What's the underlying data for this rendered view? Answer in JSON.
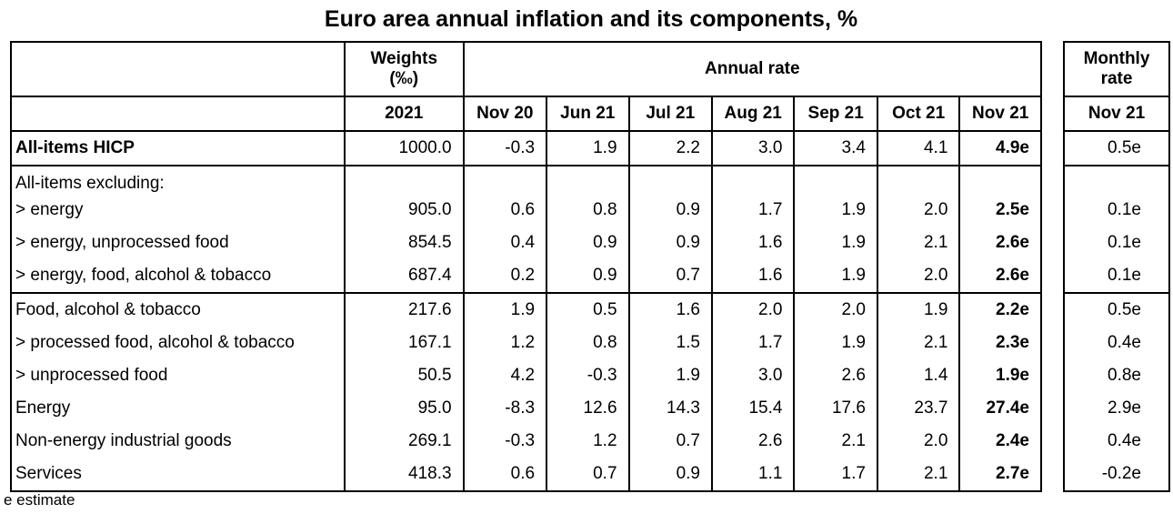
{
  "title": "Euro area annual inflation and its components, %",
  "headers": {
    "weights": "Weights\n(‰)",
    "weights_line1": "Weights",
    "weights_line2": "(‰)",
    "weights_year": "2021",
    "annual_rate": "Annual rate",
    "monthly_line1": "Monthly",
    "monthly_line2": "rate",
    "months": [
      "Nov 20",
      "Jun 21",
      "Jul 21",
      "Aug 21",
      "Sep 21",
      "Oct 21",
      "Nov 21"
    ],
    "monthly_month": "Nov 21"
  },
  "rows": [
    {
      "label": "All-items HICP",
      "weight": "1000.0",
      "values": [
        "-0.3",
        "1.9",
        "2.2",
        "3.0",
        "3.4",
        "4.1",
        "4.9e"
      ],
      "monthly": "0.5e"
    },
    {
      "label": "> energy",
      "weight": "905.0",
      "values": [
        "0.6",
        "0.8",
        "0.9",
        "1.7",
        "1.9",
        "2.0",
        "2.5e"
      ],
      "monthly": "0.1e"
    },
    {
      "label": "> energy, unprocessed food",
      "weight": "854.5",
      "values": [
        "0.4",
        "0.9",
        "0.9",
        "1.6",
        "1.9",
        "2.1",
        "2.6e"
      ],
      "monthly": "0.1e"
    },
    {
      "label": "> energy, food, alcohol & tobacco",
      "weight": "687.4",
      "values": [
        "0.2",
        "0.9",
        "0.7",
        "1.6",
        "1.9",
        "2.0",
        "2.6e"
      ],
      "monthly": "0.1e"
    },
    {
      "label": "Food, alcohol & tobacco",
      "weight": "217.6",
      "values": [
        "1.9",
        "0.5",
        "1.6",
        "2.0",
        "2.0",
        "1.9",
        "2.2e"
      ],
      "monthly": "0.5e"
    },
    {
      "label": "> processed food, alcohol & tobacco",
      "weight": "167.1",
      "values": [
        "1.2",
        "0.8",
        "1.5",
        "1.7",
        "1.9",
        "2.1",
        "2.3e"
      ],
      "monthly": "0.4e"
    },
    {
      "label": "> unprocessed food",
      "weight": "50.5",
      "values": [
        "4.2",
        "-0.3",
        "1.9",
        "3.0",
        "2.6",
        "1.4",
        "1.9e"
      ],
      "monthly": "0.8e"
    },
    {
      "label": "Energy",
      "weight": "95.0",
      "values": [
        "-8.3",
        "12.6",
        "14.3",
        "15.4",
        "17.6",
        "23.7",
        "27.4e"
      ],
      "monthly": "2.9e"
    },
    {
      "label": "Non-energy industrial goods",
      "weight": "269.1",
      "values": [
        "-0.3",
        "1.2",
        "0.7",
        "2.6",
        "2.1",
        "2.0",
        "2.4e"
      ],
      "monthly": "0.4e"
    },
    {
      "label": "Services",
      "weight": "418.3",
      "values": [
        "0.6",
        "0.7",
        "0.9",
        "1.1",
        "1.7",
        "2.1",
        "2.7e"
      ],
      "monthly": "-0.2e"
    }
  ],
  "excluding_label": "All-items excluding:",
  "footnote": "e estimate"
}
